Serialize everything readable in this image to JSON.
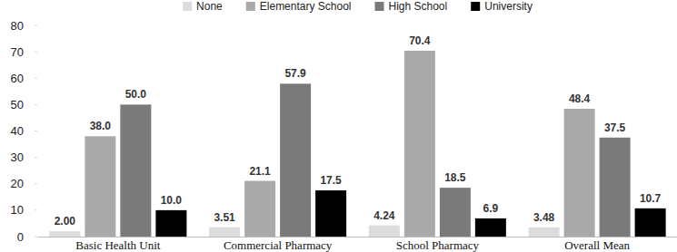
{
  "chart_data": {
    "type": "bar",
    "categories": [
      "Basic Health Unit",
      "Commercial Pharmacy",
      "School Pharmacy",
      "Overall Mean"
    ],
    "series": [
      {
        "name": "None",
        "color": "#dcdcdc",
        "values": [
          2.0,
          3.51,
          4.24,
          3.48
        ],
        "value_labels": [
          "2.00",
          "3.51",
          "4.24",
          "3.48"
        ]
      },
      {
        "name": "Elementary School",
        "color": "#a9a9a9",
        "values": [
          38.0,
          21.1,
          70.4,
          48.4
        ],
        "value_labels": [
          "38.0",
          "21.1",
          "70.4",
          "48.4"
        ]
      },
      {
        "name": "High School",
        "color": "#7a7a7a",
        "values": [
          50.0,
          57.9,
          18.5,
          37.5
        ],
        "value_labels": [
          "50.0",
          "57.9",
          "18.5",
          "37.5"
        ]
      },
      {
        "name": "University",
        "color": "#000000",
        "values": [
          10.0,
          17.5,
          6.9,
          10.7
        ],
        "value_labels": [
          "10.0",
          "17.5",
          "6.9",
          "10.7"
        ]
      }
    ],
    "ylim": [
      0,
      80
    ],
    "yticks": [
      0,
      10,
      20,
      30,
      40,
      50,
      60,
      70,
      80
    ],
    "grid": false,
    "legend": "top",
    "data_labels": true
  }
}
